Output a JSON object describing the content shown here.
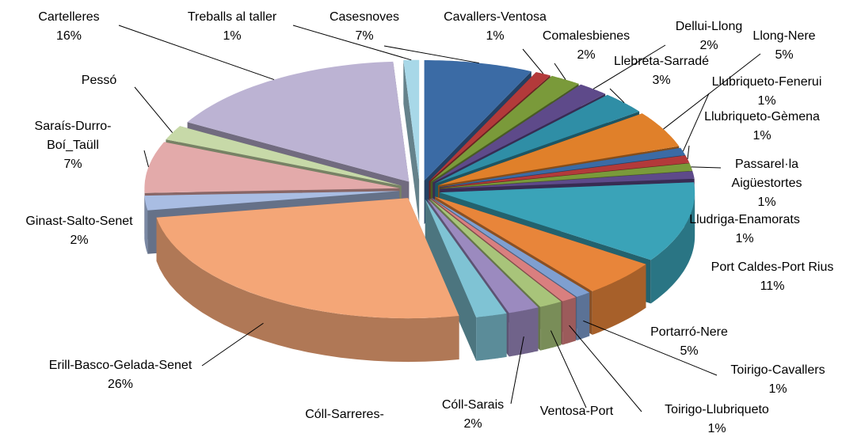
{
  "chart_data": {
    "type": "pie3d",
    "categories": [
      "Casesnoves",
      "Cavallers-Ventosa",
      "Comalesbienes",
      "Dellui-Llong",
      "Llebreta-Sarradé",
      "Llong-Nere",
      "Llubriqueto-Fenerui",
      "Llubriqueto-Gèmena",
      "Passarel·la Aigüestortes",
      "Lludriga-Enamorats",
      "Port Caldes-Port Rius",
      "Portarró-Nere",
      "Toirigo-Cavallers",
      "Toirigo-Llubriqueto",
      "Ventosa-Port",
      "Cóll-Sarais",
      "Cóll-Sarreres-",
      "Erill-Basco-Gelada-Senet",
      "Ginast-Salto-Senet",
      "Saraís-Durro-Boí_Taüll",
      "Pessó",
      "Cartelleres",
      "Treballs al taller"
    ],
    "values": [
      7,
      1,
      2,
      2,
      3,
      5,
      1,
      1,
      1,
      1,
      11,
      5,
      1,
      1,
      1.5,
      2,
      2,
      26,
      2,
      7,
      2,
      16,
      1
    ],
    "value_labels": [
      "7%",
      "1%",
      "2%",
      "2%",
      "3%",
      "5%",
      "1%",
      "1%",
      "1%",
      "1%",
      "11%",
      "5%",
      "1%",
      "1%",
      null,
      "2%",
      null,
      "26%",
      "2%",
      "7%",
      null,
      "16%",
      "1%"
    ],
    "colors": [
      "#3b6ba5",
      "#b33a3a",
      "#7a9a3a",
      "#5e4a8a",
      "#2f8ea6",
      "#e0802a",
      "#3b6ba5",
      "#b33a3a",
      "#7a9a3a",
      "#5e4a8a",
      "#3aa3b8",
      "#e8853a",
      "#7f9fd0",
      "#d97f7f",
      "#a8c47a",
      "#9b8abf",
      "#7fc3d4",
      "#f4a677",
      "#a9bde3",
      "#e3aaaa",
      "#c7d9a8",
      "#bcb3d3",
      "#a8d8e8"
    ]
  }
}
